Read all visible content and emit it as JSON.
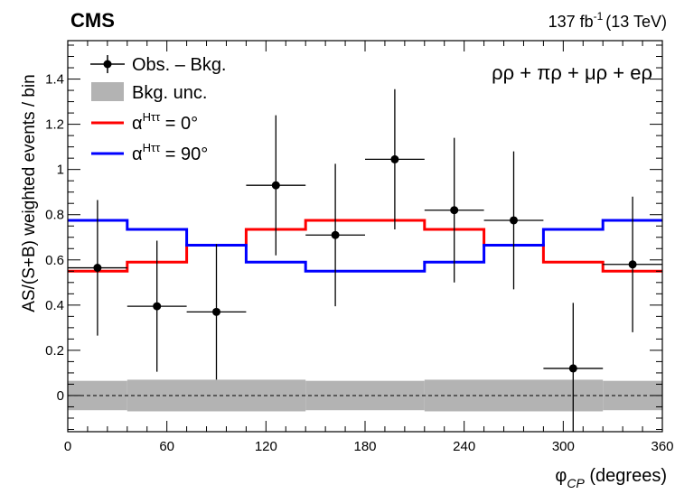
{
  "header": {
    "experiment": "CMS",
    "lumi_value": "137 fb",
    "lumi_exponent": "-1",
    "energy": "(13 TeV)"
  },
  "annotation": {
    "channel": "ρρ + πρ + μρ + eρ"
  },
  "legend": {
    "placement": "top-left",
    "entries": [
      {
        "key": "obs",
        "label": "Obs. – Bkg."
      },
      {
        "key": "unc",
        "label": "Bkg. unc."
      },
      {
        "key": "a0",
        "label_prefix": "α",
        "label_sup": "Hττ",
        "label_suffix": " = 0°"
      },
      {
        "key": "a90",
        "label_prefix": "α",
        "label_sup": "Hττ",
        "label_suffix": " = 90°"
      }
    ]
  },
  "colors": {
    "alpha0": "#ff0000",
    "alpha90": "#0000ff",
    "unc_band": "#b3b3b3",
    "data": "#000000"
  },
  "chart_data": {
    "type": "line",
    "xlabel_main": "φ",
    "xlabel_sub": "CP",
    "xlabel_unit": " (degrees)",
    "ylabel": "AS/(S+B) weighted events / bin",
    "xlim": [
      0,
      360
    ],
    "ylim": [
      -0.16,
      1.57
    ],
    "x_ticks": [
      0,
      60,
      120,
      180,
      240,
      300,
      360
    ],
    "y_ticks": [
      0,
      0.2,
      0.4,
      0.6,
      0.8,
      1,
      1.2,
      1.4
    ],
    "x_tick_labels": [
      "0",
      "60",
      "120",
      "180",
      "240",
      "300",
      "360"
    ],
    "y_tick_labels": [
      "0",
      "0.2",
      "0.4",
      "0.6",
      "0.8",
      "1",
      "1.2",
      "1.4"
    ],
    "bin_edges": [
      0,
      36,
      72,
      108,
      144,
      180,
      216,
      252,
      288,
      324,
      360
    ],
    "series": [
      {
        "name": "α^Hττ = 0°",
        "style": "step",
        "color": "#ff0000",
        "values": [
          0.55,
          0.59,
          0.665,
          0.735,
          0.775,
          0.775,
          0.735,
          0.665,
          0.59,
          0.55
        ]
      },
      {
        "name": "α^Hττ = 90°",
        "style": "step",
        "color": "#0000ff",
        "values": [
          0.775,
          0.735,
          0.665,
          0.59,
          0.55,
          0.55,
          0.59,
          0.665,
          0.735,
          0.775
        ]
      }
    ],
    "observed": {
      "name": "Obs. – Bkg.",
      "x": [
        18,
        54,
        90,
        126,
        162,
        198,
        234,
        270,
        306,
        342
      ],
      "y": [
        0.565,
        0.395,
        0.37,
        0.93,
        0.71,
        1.045,
        0.82,
        0.775,
        0.12,
        0.58
      ],
      "yerr": [
        0.3,
        0.29,
        0.3,
        0.31,
        0.315,
        0.31,
        0.32,
        0.305,
        0.29,
        0.3
      ],
      "xerr": 18
    },
    "uncertainty_band": {
      "name": "Bkg. unc.",
      "segments": [
        {
          "x0": 0,
          "x1": 36,
          "lo": -0.065,
          "hi": 0.065
        },
        {
          "x0": 36,
          "x1": 144,
          "lo": -0.07,
          "hi": 0.07
        },
        {
          "x0": 144,
          "x1": 216,
          "lo": -0.065,
          "hi": 0.065
        },
        {
          "x0": 216,
          "x1": 324,
          "lo": -0.07,
          "hi": 0.07
        },
        {
          "x0": 324,
          "x1": 360,
          "lo": -0.065,
          "hi": 0.065
        }
      ]
    },
    "zero_line": true,
    "grid": false
  }
}
